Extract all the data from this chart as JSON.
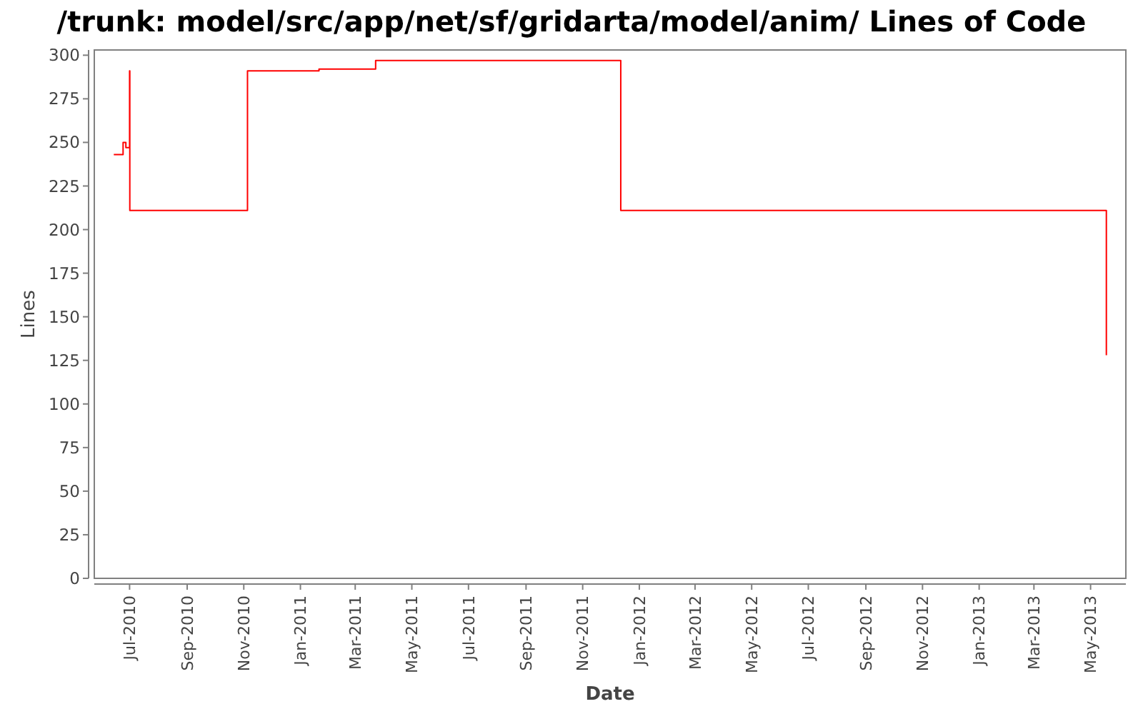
{
  "chart_data": {
    "type": "step",
    "title": "/trunk: model/src/app/net/sf/gridarta/model/anim/ Lines of Code",
    "xlabel": "Date",
    "ylabel": "Lines",
    "x": [
      "2010-06-14",
      "2010-06-24",
      "2010-06-27",
      "2010-07-01T00:00",
      "2010-07-01T06:00",
      "2010-11-05",
      "2011-01-21",
      "2011-03-23",
      "2011-12-12",
      "2013-05-18"
    ],
    "values": [
      243,
      250,
      247,
      291,
      211,
      291,
      292,
      297,
      211,
      128
    ],
    "color": "#ff0000",
    "xlim": [
      "2010-05-24",
      "2013-06-08"
    ],
    "xticks": [
      {
        "value": "2010-07",
        "label": "Jul-2010"
      },
      {
        "value": "2010-09",
        "label": "Sep-2010"
      },
      {
        "value": "2010-11",
        "label": "Nov-2010"
      },
      {
        "value": "2011-01",
        "label": "Jan-2011"
      },
      {
        "value": "2011-03",
        "label": "Mar-2011"
      },
      {
        "value": "2011-05",
        "label": "May-2011"
      },
      {
        "value": "2011-07",
        "label": "Jul-2011"
      },
      {
        "value": "2011-09",
        "label": "Sep-2011"
      },
      {
        "value": "2011-11",
        "label": "Nov-2011"
      },
      {
        "value": "2012-01",
        "label": "Jan-2012"
      },
      {
        "value": "2012-03",
        "label": "Mar-2012"
      },
      {
        "value": "2012-05",
        "label": "May-2012"
      },
      {
        "value": "2012-07",
        "label": "Jul-2012"
      },
      {
        "value": "2012-09",
        "label": "Sep-2012"
      },
      {
        "value": "2012-11",
        "label": "Nov-2012"
      },
      {
        "value": "2013-01",
        "label": "Jan-2013"
      },
      {
        "value": "2013-03",
        "label": "Mar-2013"
      },
      {
        "value": "2013-05",
        "label": "May-2013"
      }
    ],
    "ylim": [
      0,
      303
    ],
    "yticks": [
      0,
      25,
      50,
      75,
      100,
      125,
      150,
      175,
      200,
      225,
      250,
      275,
      300
    ]
  }
}
